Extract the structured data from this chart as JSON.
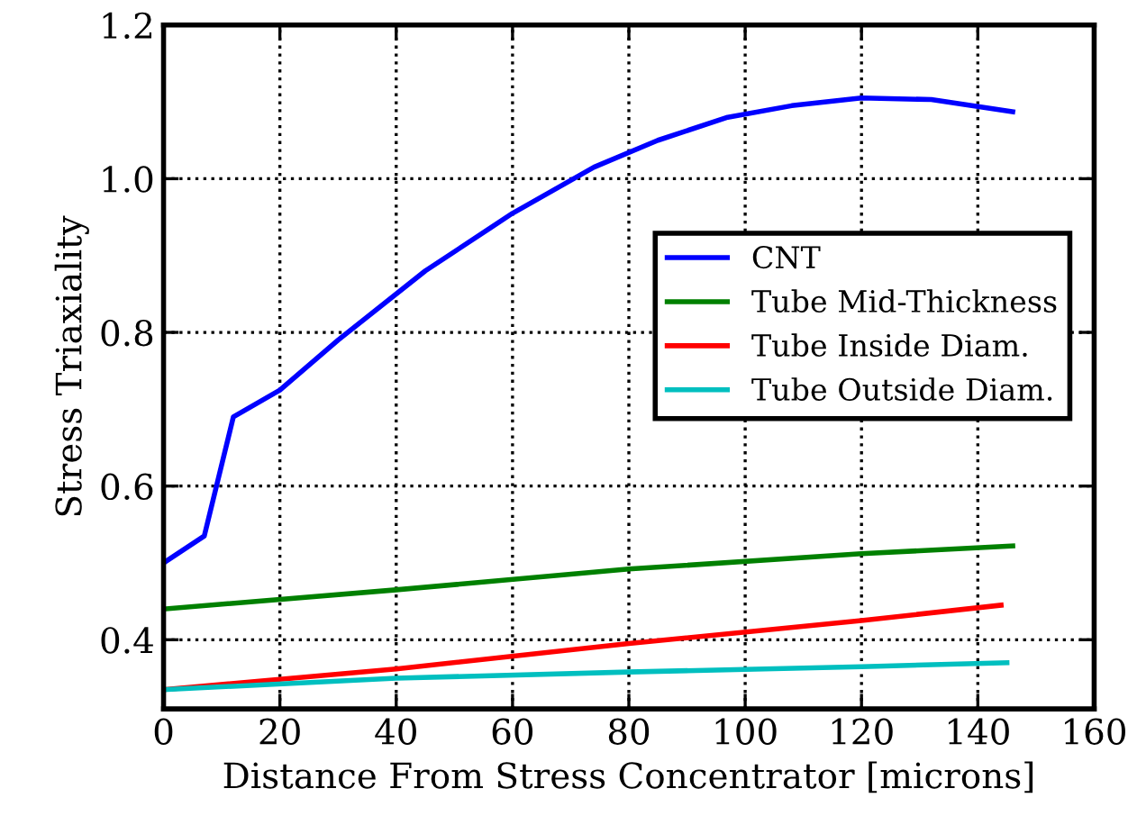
{
  "chart_data": {
    "type": "line",
    "xlabel": "Distance From Stress Concentrator [microns]",
    "ylabel": "Stress Triaxiality",
    "xlim": [
      0,
      160
    ],
    "xticks": [
      0,
      20,
      40,
      60,
      80,
      100,
      120,
      140,
      160
    ],
    "ylim": [
      0.31,
      1.2
    ],
    "yticks": [
      0.4,
      0.6,
      0.8,
      {
        "value": 1,
        "label": "1.0"
      },
      1.2
    ],
    "grid": true,
    "legend": "right",
    "line_style": "solid",
    "series": [
      {
        "name": "CNT",
        "color": "#0000ff",
        "x": [
          0,
          7,
          12,
          20,
          30,
          45,
          60,
          74,
          85,
          97,
          108,
          120,
          132,
          146
        ],
        "values": [
          0.5,
          0.535,
          0.69,
          0.725,
          0.79,
          0.88,
          0.955,
          1.015,
          1.05,
          1.08,
          1.095,
          1.105,
          1.103,
          1.087
        ]
      },
      {
        "name": "Tube Mid-Thickness",
        "color": "#008000",
        "x": [
          0,
          40,
          80,
          120,
          146
        ],
        "values": [
          0.44,
          0.465,
          0.492,
          0.512,
          0.522
        ]
      },
      {
        "name": "Tube Inside Diam.",
        "color": "#ff0000",
        "x": [
          0,
          40,
          80,
          120,
          144
        ],
        "values": [
          0.335,
          0.362,
          0.395,
          0.425,
          0.445
        ]
      },
      {
        "name": "Tube Outside Diam.",
        "color": "#00bfbf",
        "x": [
          0,
          40,
          80,
          120,
          145
        ],
        "values": [
          0.335,
          0.35,
          0.358,
          0.365,
          0.37
        ]
      }
    ]
  }
}
